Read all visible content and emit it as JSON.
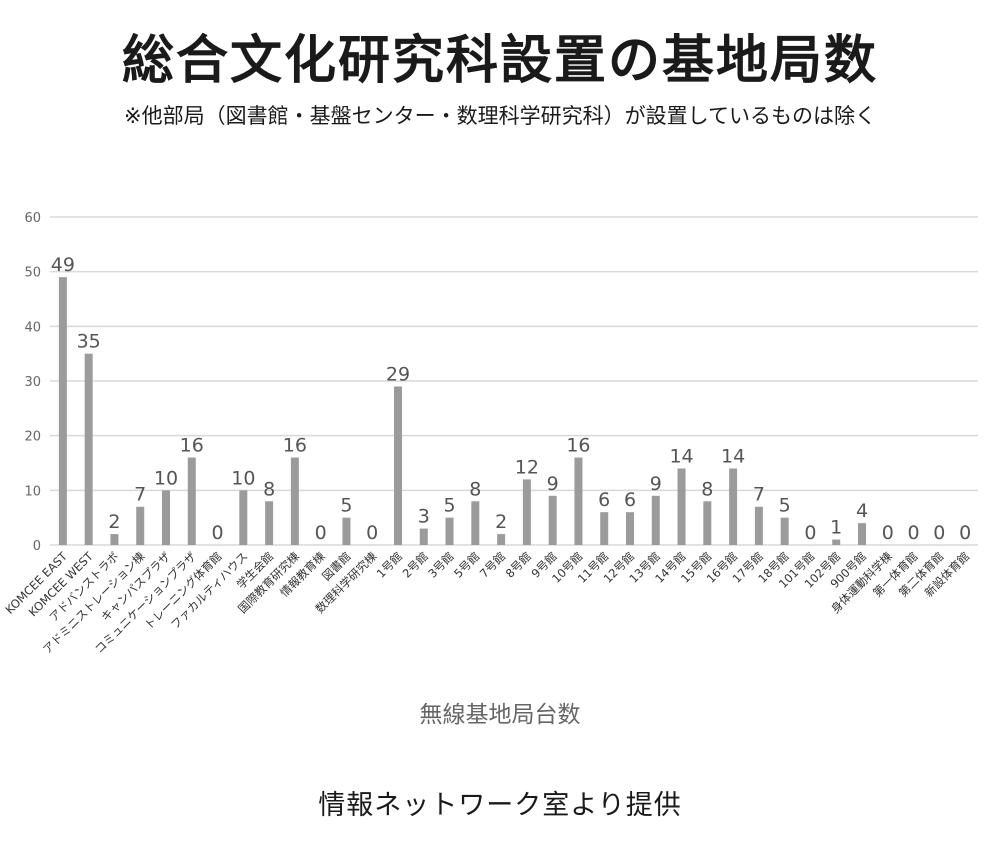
{
  "header": {
    "title": "総合文化研究科設置の基地局数",
    "subtitle": "※他部局（図書館・基盤センター・数理科学研究科）が設置しているものは除く"
  },
  "footer": {
    "credit": "情報ネットワーク室より提供"
  },
  "chart_data": {
    "type": "bar",
    "title": "",
    "xlabel": "無線基地局台数",
    "ylabel": "",
    "ylim": [
      0,
      60
    ],
    "yticks": [
      0,
      10,
      20,
      30,
      40,
      50,
      60
    ],
    "grid": true,
    "bar_color": "#9b9b9b",
    "grid_color": "#d9d9d9",
    "categories": [
      "KOMCEE EAST",
      "KOMCEE WEST",
      "アドバンストラボ",
      "アドミニストレーション棟",
      "キャンパスプラザ",
      "コミュニケーションプラザ",
      "トレーニング体育館",
      "ファカルティハウス",
      "学生会館",
      "国際教育研究棟",
      "情報教育棟",
      "図書館",
      "数理科学研究棟",
      "1号館",
      "2号館",
      "3号館",
      "5号館",
      "7号館",
      "8号館",
      "9号館",
      "10号館",
      "11号館",
      "12号館",
      "13号館",
      "14号館",
      "15号館",
      "16号館",
      "17号館",
      "18号館",
      "101号館",
      "102号館",
      "900号館",
      "身体運動科学棟",
      "第一体育館",
      "第二体育館",
      "新設体育館"
    ],
    "values": [
      49,
      35,
      2,
      7,
      10,
      16,
      0,
      10,
      8,
      16,
      0,
      5,
      0,
      29,
      3,
      5,
      8,
      2,
      12,
      9,
      16,
      6,
      6,
      9,
      14,
      8,
      14,
      7,
      5,
      0,
      1,
      4,
      0,
      0,
      0,
      0
    ]
  }
}
